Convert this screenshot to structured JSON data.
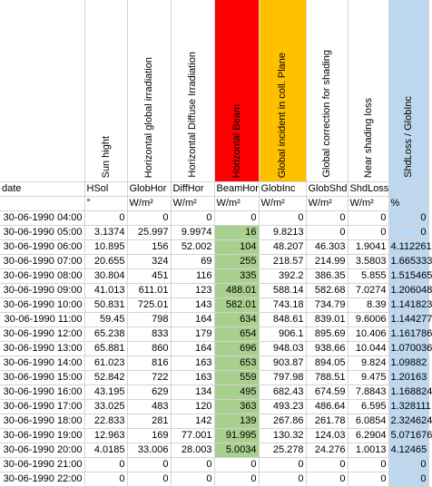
{
  "headers": [
    "",
    "Sun hight",
    "Horizontal global irradiation",
    "Horizontal Diffuse Irradiation",
    "Horizontal Beam",
    "Global incident in coll. Plane",
    "Global correction for shading",
    "Near shading loss",
    "ShdLoss / GlobInc"
  ],
  "labels": [
    "date",
    "HSol",
    "GlobHor",
    "DiffHor",
    "BeamHor",
    "GlobInc",
    "GlobShd",
    "ShdLoss",
    ""
  ],
  "units": [
    "",
    "°",
    "W/m²",
    "W/m²",
    "W/m²",
    "W/m²",
    "W/m²",
    "W/m²",
    "%"
  ],
  "header_colors": {
    "red": "#ff0000",
    "orange": "#ffc000",
    "blue": "#bdd7ee",
    "green": "#a9d08e"
  },
  "rows": [
    [
      "30-06-1990 04:00",
      "0",
      "0",
      "0",
      "0",
      "0",
      "0",
      "0",
      "0"
    ],
    [
      "30-06-1990 05:00",
      "3.1374",
      "25.997",
      "9.9974",
      "16",
      "9.8213",
      "0",
      "0",
      "0"
    ],
    [
      "30-06-1990 06:00",
      "10.895",
      "156",
      "52.002",
      "104",
      "48.207",
      "46.303",
      "1.9041",
      "4.112261"
    ],
    [
      "30-06-1990 07:00",
      "20.655",
      "324",
      "69",
      "255",
      "218.57",
      "214.99",
      "3.5803",
      "1.665333"
    ],
    [
      "30-06-1990 08:00",
      "30.804",
      "451",
      "116",
      "335",
      "392.2",
      "386.35",
      "5.855",
      "1.515465"
    ],
    [
      "30-06-1990 09:00",
      "41.013",
      "611.01",
      "123",
      "488.01",
      "588.14",
      "582.68",
      "7.0274",
      "1.206048"
    ],
    [
      "30-06-1990 10:00",
      "50.831",
      "725.01",
      "143",
      "582.01",
      "743.18",
      "734.79",
      "8.39",
      "1.141823"
    ],
    [
      "30-06-1990 11:00",
      "59.45",
      "798",
      "164",
      "634",
      "848.61",
      "839.01",
      "9.6006",
      "1.144277"
    ],
    [
      "30-06-1990 12:00",
      "65.238",
      "833",
      "179",
      "654",
      "906.1",
      "895.69",
      "10.406",
      "1.161786"
    ],
    [
      "30-06-1990 13:00",
      "65.881",
      "860",
      "164",
      "696",
      "948.03",
      "938.66",
      "10.044",
      "1.070036"
    ],
    [
      "30-06-1990 14:00",
      "61.023",
      "816",
      "163",
      "653",
      "903.87",
      "894.05",
      "9.824",
      "1.09882"
    ],
    [
      "30-06-1990 15:00",
      "52.842",
      "722",
      "163",
      "559",
      "797.98",
      "788.51",
      "9.475",
      "1.20163"
    ],
    [
      "30-06-1990 16:00",
      "43.195",
      "629",
      "134",
      "495",
      "682.43",
      "674.59",
      "7.8843",
      "1.168824"
    ],
    [
      "30-06-1990 17:00",
      "33.025",
      "483",
      "120",
      "363",
      "493.23",
      "486.64",
      "6.595",
      "1.328111"
    ],
    [
      "30-06-1990 18:00",
      "22.833",
      "281",
      "142",
      "139",
      "267.86",
      "261.78",
      "6.0854",
      "2.324624"
    ],
    [
      "30-06-1990 19:00",
      "12.963",
      "169",
      "77.001",
      "91.995",
      "130.32",
      "124.03",
      "6.2904",
      "5.071676"
    ],
    [
      "30-06-1990 20:00",
      "4.0185",
      "33.006",
      "28.003",
      "5.0034",
      "25.278",
      "24.276",
      "1.0013",
      "4.12465"
    ],
    [
      "30-06-1990 21:00",
      "0",
      "0",
      "0",
      "0",
      "0",
      "0",
      "0",
      "0"
    ],
    [
      "30-06-1990 22:00",
      "0",
      "0",
      "0",
      "0",
      "0",
      "0",
      "0",
      "0"
    ]
  ]
}
